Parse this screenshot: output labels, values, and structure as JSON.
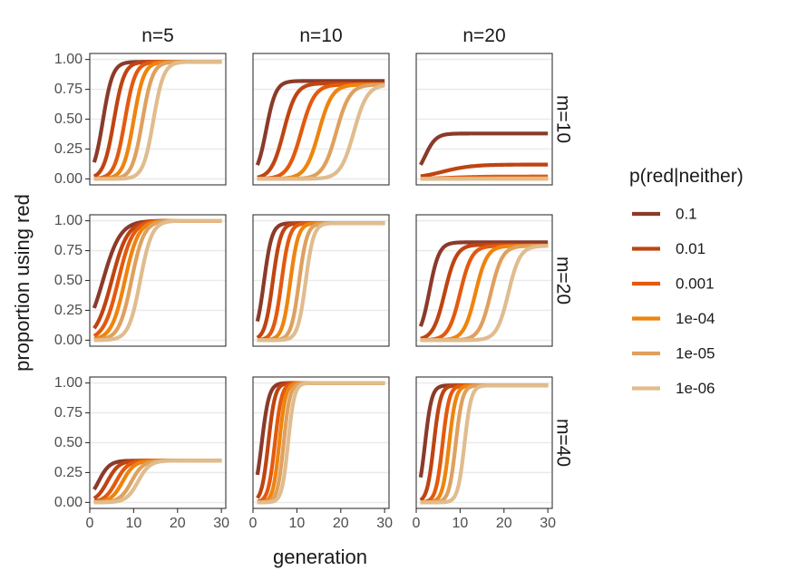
{
  "chart_data": {
    "type": "line",
    "xlabel": "generation",
    "ylabel": "proportion using red",
    "xlim": [
      0,
      31
    ],
    "ylim": [
      -0.05,
      1.05
    ],
    "x_ticks": [
      "0",
      "10",
      "20",
      "30"
    ],
    "y_ticks": [
      "0.00",
      "0.25",
      "0.50",
      "0.75",
      "1.00"
    ],
    "columns": [
      "n=5",
      "n=10",
      "n=20"
    ],
    "rows": [
      "m=10",
      "m=20",
      "m=40"
    ],
    "grid": "horizontal",
    "legend": {
      "title": "p(red|neither)",
      "position": "right",
      "entries": [
        "0.1",
        "0.01",
        "0.001",
        "1e-04",
        "1e-05",
        "1e-06"
      ],
      "colors": [
        "#8B3A2A",
        "#BF4412",
        "#E35A0E",
        "#EE840E",
        "#DFA05E",
        "#E0BC8E"
      ]
    },
    "panels": [
      {
        "row": "m=10",
        "col": "n=5",
        "asymptote": [
          0.98,
          0.98,
          0.98,
          0.98,
          0.98,
          0.98
        ],
        "midpoint": [
          3.0,
          5.5,
          8.0,
          10.0,
          12.0,
          14.5
        ],
        "steepness": [
          0.9,
          0.85,
          0.85,
          0.85,
          0.85,
          0.85
        ]
      },
      {
        "row": "m=10",
        "col": "n=10",
        "asymptote": [
          0.82,
          0.8,
          0.79,
          0.79,
          0.79,
          0.79
        ],
        "midpoint": [
          3.0,
          7.0,
          11.0,
          15.0,
          19.0,
          23.0
        ],
        "steepness": [
          0.9,
          0.7,
          0.65,
          0.65,
          0.65,
          0.65
        ]
      },
      {
        "row": "m=10",
        "col": "n=20",
        "asymptote": [
          0.38,
          0.12,
          0.02,
          0.005,
          0.002,
          0.001
        ],
        "midpoint": [
          2.0,
          6.0,
          8.0,
          8.0,
          8.0,
          8.0
        ],
        "steepness": [
          0.8,
          0.3,
          0.3,
          0.3,
          0.3,
          0.3
        ]
      },
      {
        "row": "m=20",
        "col": "n=5",
        "asymptote": [
          1.0,
          1.0,
          1.0,
          1.0,
          1.0,
          1.0
        ],
        "midpoint": [
          3.0,
          5.0,
          6.5,
          8.0,
          9.5,
          11.5
        ],
        "steepness": [
          0.5,
          0.55,
          0.6,
          0.65,
          0.7,
          0.75
        ]
      },
      {
        "row": "m=20",
        "col": "n=10",
        "asymptote": [
          0.98,
          0.98,
          0.98,
          0.98,
          0.98,
          0.98
        ],
        "midpoint": [
          2.5,
          4.5,
          6.5,
          8.5,
          10.5,
          12.0
        ],
        "steepness": [
          1.1,
          1.1,
          1.1,
          1.1,
          1.1,
          1.1
        ]
      },
      {
        "row": "m=20",
        "col": "n=20",
        "asymptote": [
          0.82,
          0.8,
          0.79,
          0.79,
          0.79,
          0.79
        ],
        "midpoint": [
          3.0,
          6.5,
          10.0,
          13.5,
          17.0,
          21.0
        ],
        "steepness": [
          0.9,
          0.75,
          0.75,
          0.75,
          0.75,
          0.75
        ]
      },
      {
        "row": "m=40",
        "col": "n=5",
        "asymptote": [
          0.35,
          0.35,
          0.35,
          0.35,
          0.35,
          0.35
        ],
        "midpoint": [
          2.0,
          4.0,
          6.0,
          7.5,
          9.5,
          11.0
        ],
        "steepness": [
          0.8,
          0.75,
          0.75,
          0.75,
          0.75,
          0.75
        ]
      },
      {
        "row": "m=40",
        "col": "n=10",
        "asymptote": [
          1.0,
          1.0,
          1.0,
          1.0,
          1.0,
          1.0
        ],
        "midpoint": [
          2.0,
          3.5,
          5.0,
          6.0,
          7.0,
          8.0
        ],
        "steepness": [
          1.2,
          1.3,
          1.3,
          1.4,
          1.4,
          1.4
        ]
      },
      {
        "row": "m=40",
        "col": "n=20",
        "asymptote": [
          0.98,
          0.98,
          0.98,
          0.98,
          0.98,
          0.98
        ],
        "midpoint": [
          2.0,
          4.0,
          6.0,
          7.5,
          9.0,
          11.0
        ],
        "steepness": [
          1.3,
          1.3,
          1.3,
          1.3,
          1.3,
          1.3
        ]
      }
    ]
  }
}
